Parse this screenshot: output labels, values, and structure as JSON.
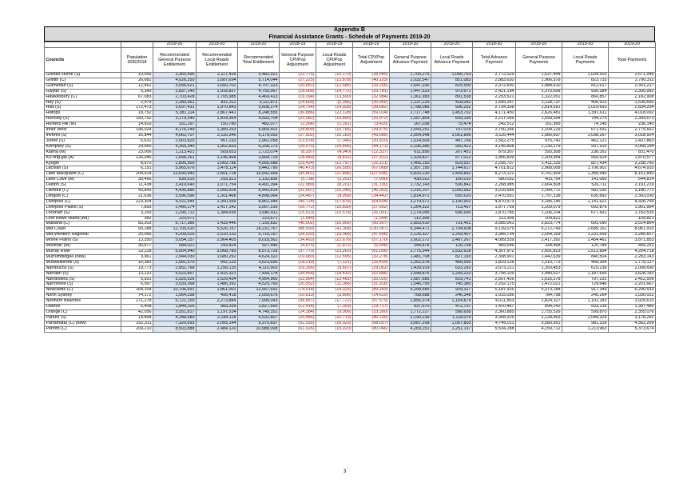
{
  "title": {
    "line1": "Appendix B",
    "line2": "Financial Assistance Grants - Schedule of Payments 2019-20"
  },
  "years": [
    "",
    "",
    "2019-20",
    "2019-20",
    "2019-20",
    "2018-19",
    "2018-19",
    "2018-19",
    "2019-20",
    "2019-20",
    "2019-20",
    "2019-20",
    "2019-20",
    "2019-20"
  ],
  "headers": [
    "Councils",
    "Population 30/6/2018",
    "Recommended General Purpose Entitlement",
    "Recommended Local Roads Entitlement",
    "Recommended Total Entitlement",
    "General Purpose CPI/Pop Adjustment",
    "Local Roads CPI/Pop Adjustment",
    "Total CPI/Pop Adjustment",
    "General Purpose Advance Payment",
    "Local Roads Advance Payment",
    "Total Advance Payment",
    "General Purpose Payments",
    "Local Roads Payments",
    "Total Payments"
  ],
  "rows": [
    [
      "Greater Hume (S)",
      "10,666",
      "3,365,495",
      "2,117,426",
      "5,482,921",
      "(22,775)",
      "(16,170)",
      "(38,945)",
      "1,705,276",
      "1,066,753",
      "2,772,029",
      "1,637,444",
      "1,034,503",
      "2,671,946"
    ],
    [
      "Griffith (C)",
      "26,682",
      "4,026,350",
      "1,687,694",
      "5,714,044",
      "(27,225)",
      "(12,878)",
      "(40,103)",
      "2,032,547",
      "851,083",
      "2,883,630",
      "1,966,578",
      "823,733",
      "2,790,311"
    ],
    [
      "Gunnedah (S)",
      "12,661",
      "3,056,621",
      "1,650,702",
      "4,707,323",
      "(20,681)",
      "(12,585)",
      "(33,266)",
      "1,547,330",
      "825,500",
      "2,372,830",
      "1,488,610",
      "812,617",
      "2,301,227"
    ],
    [
      "Gwydir (S)",
      "5,349",
      "2,837,140",
      "1,918,827",
      "4,755,967",
      "(19,009)",
      "(14,772)",
      "(33,781)",
      "1,447,523",
      "973,671",
      "2,421,194",
      "1,370,608",
      "930,384",
      "2,300,992"
    ],
    [
      "Hawkesbury (C)",
      "67,083",
      "2,703,428",
      "1,765,985",
      "4,469,413",
      "(19,394)",
      "(13,590)",
      "(32,984)",
      "1,361,983",
      "891,538",
      "2,253,521",
      "1,322,051",
      "860,857",
      "2,182,908"
    ],
    [
      "Hay (S)",
      "2,979",
      "2,280,561",
      "831,311",
      "3,111,872",
      "(14,600)",
      "(6,356)",
      "(20,956)",
      "1,137,225",
      "418,042",
      "1,555,267",
      "1,128,737",
      "406,913",
      "1,535,650"
    ],
    [
      "Hills (S)",
      "172,473",
      "3,637,431",
      "1,970,843",
      "5,608,274",
      "(24,754)",
      "(14,928)",
      "(39,682)",
      "1,798,086",
      "936,252",
      "2,734,338",
      "1,814,591",
      "1,019,663",
      "2,834,254"
    ],
    [
      "Hilltops",
      "18,752",
      "5,381,114",
      "2,867,441",
      "8,248,555",
      "(36,886)",
      "(22,128)",
      "(59,014)",
      "2,717,748",
      "1,453,702",
      "4,171,450",
      "2,626,481",
      "1,391,611",
      "4,018,092"
    ],
    [
      "Hornsby (S)",
      "150,752",
      "3,179,340",
      "1,414,364",
      "4,593,704",
      "(22,082)",
      "(10,890)",
      "(32,972)",
      "1,557,864",
      "659,195",
      "2,217,059",
      "1,599,394",
      "744,279",
      "2,343,673"
    ],
    [
      "Hunters Hill (M)",
      "14,929",
      "331,297",
      "150,780",
      "482,077",
      "(2,264)",
      "(1,161)",
      "(3,425)",
      "167,038",
      "75,474",
      "242,512",
      "161,995",
      "74,145",
      "236,140"
    ],
    [
      "Inner West",
      "196,024",
      "4,176,249",
      "1,389,253",
      "5,565,502",
      "(28,809)",
      "(10,766)",
      "(39,575)",
      "2,043,251",
      "707,015",
      "2,750,266",
      "2,104,129",
      "671,532",
      "2,775,661"
    ],
    [
      "Inverell (S)",
      "16,844",
      "4,062,707",
      "2,116,346",
      "6,179,053",
      "(27,502)",
      "(16,183)",
      "(43,685)",
      "2,054,548",
      "1,061,896",
      "3,116,444",
      "1,980,657",
      "1,038,267",
      "3,018,924"
    ],
    [
      "Junee (S)",
      "6,631",
      "2,003,825",
      "957,233",
      "2,961,058",
      "(13,574)",
      "(7,346)",
      "(20,920)",
      "1,014,509",
      "487,766",
      "1,502,275",
      "975,742",
      "462,121",
      "1,437,863"
    ],
    [
      "Kempsey (S)",
      "29,665",
      "4,355,340",
      "1,902,833",
      "6,258,173",
      "(29,675)",
      "(14,496)",
      "(44,171)",
      "2,195,386",
      "950,422",
      "3,145,808",
      "2,130,279",
      "937,915",
      "3,068,194"
    ],
    [
      "Kiama (M)",
      "23,006",
      "1,213,421",
      "509,653",
      "1,723,074",
      "(8,297)",
      "(4,040)",
      "(12,337)",
      "611,856",
      "267,451",
      "879,307",
      "593,308",
      "238,162",
      "831,470"
    ],
    [
      "Ku-ring-gai (A)",
      "126,046",
      "2,658,261",
      "1,146,468",
      "3,804,729",
      "(18,480)",
      "(8,832)",
      "(27,312)",
      "1,329,827",
      "577,012",
      "1,906,839",
      "1,309,954",
      "560,624",
      "1,870,577"
    ],
    [
      "Kyogle",
      "8,970",
      "2,896,900",
      "1,669,788",
      "4,566,688",
      "(19,424)",
      "(12,797)",
      "(32,221)",
      "1,466,150",
      "829,557",
      "2,295,707",
      "1,411,325",
      "827,434",
      "2,238,760"
    ],
    [
      "Lachlan (S)",
      "6,151",
      "5,965,676",
      "3,478,114",
      "9,443,790",
      "(40,473)",
      "(26,595)",
      "(67,068)",
      "2,957,195",
      "1,744,617",
      "4,701,812",
      "2,968,008",
      "1,706,902",
      "4,674,910"
    ],
    [
      "Lake Macquarie (C)",
      "204,914",
      "13,690,940",
      "2,851,728",
      "16,542,668",
      "(95,801)",
      "(21,896)",
      "(117,696)",
      "6,833,230",
      "1,439,892",
      "8,273,122",
      "6,761,909",
      "1,389,940",
      "8,151,850"
    ],
    [
      "Lane Cove (M)",
      "39,466",
      "839,515",
      "293,321",
      "1,132,836",
      "(5,738)",
      "(2,251)",
      "(7,990)",
      "430,022",
      "150,010",
      "580,032",
      "403,754",
      "141,060",
      "544,814"
    ],
    [
      "Leeton (S)",
      "11,438",
      "3,419,640",
      "1,071,754",
      "4,491,394",
      "(22,989)",
      "(8,201)",
      "(31,190)",
      "1,732,143",
      "536,842",
      "2,268,985",
      "1,664,508",
      "526,711",
      "2,191,219"
    ],
    [
      "Lismore (C)",
      "43,843",
      "4,436,886",
      "2,006,928",
      "6,443,814",
      "(31,007)",
      "(15,346)",
      "(46,353)",
      "2,216,107",
      "1,000,582",
      "3,216,689",
      "2,189,772",
      "991,030",
      "3,180,772"
    ],
    [
      "Lithgow (C)",
      "21,636",
      "3,596,596",
      "1,301,468",
      "4,898,064",
      "(24,487)",
      "(9,958)",
      "(34,442)",
      "1,814,971",
      "655,620",
      "2,470,591",
      "1,757,138",
      "635,892",
      "2,393,030"
    ],
    [
      "Liverpool (C)",
      "223,304",
      "6,511,545",
      "2,350,399",
      "8,861,944",
      "(46,728)",
      "(17,876)",
      "(64,604)",
      "3,279,671",
      "1,190,902",
      "4,470,573",
      "3,185,146",
      "1,141,621",
      "4,326,766"
    ],
    [
      "Liverpool Plains (S)",
      "7,893",
      "2,490,174",
      "1,417,142",
      "3,907,316",
      "(16,772)",
      "(10,830)",
      "(27,602)",
      "1,264,322",
      "713,437",
      "1,977,759",
      "1,209,079",
      "692,875",
      "1,901,954"
    ],
    [
      "Lockhart (S)",
      "3,293",
      "2,295,712",
      "1,384,699",
      "3,680,411",
      "(15,513)",
      "(10,578)",
      "(26,091)",
      "1,174,095",
      "696,690",
      "1,870,785",
      "1,106,104",
      "677,431",
      "1,783,535"
    ],
    [
      "Lord Howe Island (Bd)",
      "382",
      "223,671",
      "",
      "223,671",
      "(1,544)",
      "",
      "(1,544)",
      "112,306",
      "",
      "112,306",
      "109,821",
      "",
      "109,821"
    ],
    [
      "Maitland (C)",
      "83,203",
      "5,717,386",
      "1,433,446",
      "7,150,832",
      "(40,002)",
      "(10,905)",
      "(50,907)",
      "2,853,610",
      "731,451",
      "3,585,061",
      "2,823,774",
      "691,090",
      "3,514,864"
    ],
    [
      "Mid-Coast",
      "93,288",
      "12,705,610",
      "5,526,157",
      "18,231,767",
      "(88,590)",
      "(42,368)",
      "(130,957)",
      "6,344,471",
      "2,794,608",
      "9,139,079",
      "6,272,749",
      "2,689,161",
      "8,961,910"
    ],
    [
      "Mid-Western Regional",
      "25,066",
      "4,209,025",
      "2,510,132",
      "6,719,157",
      "(28,530)",
      "(19,066)",
      "(47,596)",
      "2,126,327",
      "1,259,407",
      "3,385,734",
      "2,054,169",
      "1,231,659",
      "3,285,827"
    ],
    [
      "Moree Plains (S)",
      "13,350",
      "5,054,157",
      "2,964,405",
      "8,018,562",
      "(34,493)",
      "(22,676)",
      "(57,170)",
      "2,602,272",
      "1,487,267",
      "4,089,539",
      "2,417,392",
      "1,454,462",
      "3,871,853"
    ],
    [
      "Mosman (M)",
      "30,677",
      "684,021",
      "243,424",
      "927,445",
      "(4,675)",
      "(1,872)",
      "(6,548)",
      "344,878",
      "120,768",
      "465,646",
      "334,468",
      "120,784",
      "455,251"
    ],
    [
      "Murray River",
      "12,118",
      "5,504,940",
      "3,068,785",
      "8,573,725",
      "(37,773)",
      "(23,263)",
      "(61,036)",
      "2,775,344",
      "1,532,628",
      "4,307,972",
      "2,691,823",
      "1,512,894",
      "4,204,718"
    ],
    [
      "Murrumbidgee (new)",
      "3,961",
      "2,944,030",
      "1,680,292",
      "4,624,322",
      "(19,683)",
      "(12,595)",
      "(32,278)",
      "1,481,708",
      "827,193",
      "2,308,901",
      "1,442,639",
      "840,504",
      "2,283,143"
    ],
    [
      "Muswellbrook (S)",
      "16,383",
      "2,681,570",
      "942,125",
      "3,623,695",
      "(18,219)",
      "(7,221)",
      "(25,439)",
      "1,352,578",
      "466,550",
      "1,819,128",
      "1,310,773",
      "468,354",
      "1,779,127"
    ],
    [
      "Nambucca (S)",
      "19,773",
      "2,852,768",
      "1,258,135",
      "4,110,903",
      "(19,395)",
      "(9,607)",
      "(29,002)",
      "1,439,919",
      "633,292",
      "2,073,211",
      "1,393,453",
      "615,236",
      "2,008,690"
    ],
    [
      "Narrabri (S)",
      "13,231",
      "5,023,857",
      "2,415,321",
      "7,439,178",
      "(34,454)",
      "(18,432)",
      "(52,886)",
      "2,548,876",
      "1,209,233",
      "3,758,109",
      "2,440,527",
      "1,187,656",
      "3,628,183"
    ],
    [
      "Narrandera (S)",
      "5,931",
      "3,325,526",
      "1,629,434",
      "4,954,960",
      "(22,564)",
      "(12,462)",
      "(35,025)",
      "1,687,685",
      "819,741",
      "2,507,426",
      "1,615,278",
      "797,231",
      "2,412,509"
    ],
    [
      "Narromine (S)",
      "6,567",
      "3,039,368",
      "1,486,392",
      "4,525,760",
      "(20,552)",
      "(11,366)",
      "(31,918)",
      "1,546,795",
      "745,380",
      "2,292,175",
      "1,472,021",
      "729,646",
      "2,201,667"
    ],
    [
      "Newcastle (C)",
      "164,104",
      "10,706,691",
      "1,861,001",
      "12,567,692",
      "(74,018)",
      "(14,325)",
      "(89,243)",
      "5,258,589",
      "929,327",
      "6,187,916",
      "5,373,184",
      "917,349",
      "6,290,533"
    ],
    [
      "North Sydney",
      "74,172",
      "1,564,258",
      "495,418",
      "2,059,676",
      "(10,813)",
      "(3,806)",
      "(14,619)",
      "768,688",
      "246,348",
      "1,015,036",
      "784,758",
      "245,264",
      "1,030,022"
    ],
    [
      "Northern Beaches",
      "271,278",
      "5,721,159",
      "2,273,884",
      "7,995,043",
      "(39,857)",
      "(17,722)",
      "(57,579)",
      "2,856,974",
      "1,154,879",
      "4,011,853",
      "2,824,327",
      "1,101,283",
      "3,925,610"
    ],
    [
      "Oberon",
      "5,408",
      "1,844,326",
      "983,339",
      "2,827,665",
      "(12,414)",
      "(7,303)",
      "(19,717)",
      "937,670",
      "472,797",
      "1,410,467",
      "894,242",
      "503,239",
      "1,397,480"
    ],
    [
      "Orange (C)",
      "42,056",
      "3,551,817",
      "1,197,534",
      "4,749,351",
      "(24,384)",
      "(9,006)",
      "(33,390)",
      "1,772,227",
      "588,658",
      "2,360,885",
      "1,755,526",
      "599,870",
      "2,355,076"
    ],
    [
      "Parkes (S)",
      "14,894",
      "4,348,689",
      "2,184,118",
      "6,532,807",
      "(29,486)",
      "(16,713)",
      "(46,199)",
      "2,190,239",
      "1,118,076",
      "3,308,315",
      "2,128,963",
      "1,049,329",
      "3,178,292"
    ],
    [
      "Parramatta (C) (new)",
      "251,311",
      "7,320,693",
      "2,055,144",
      "9,375,837",
      "(52,535)",
      "(16,023)",
      "(68,557)",
      "3,687,208",
      "1,057,803",
      "4,745,011",
      "3,580,951",
      "981,318",
      "4,562,269"
    ],
    [
      "Penrith (C)",
      "209,210",
      "8,503,888",
      "2,484,120",
      "10,988,008",
      "(61,026)",
      "(19,020)",
      "(80,046)",
      "4,283,151",
      "1,251,137",
      "5,534,288",
      "4,159,712",
      "1,213,963",
      "5,373,674"
    ]
  ],
  "page_number": "3"
}
